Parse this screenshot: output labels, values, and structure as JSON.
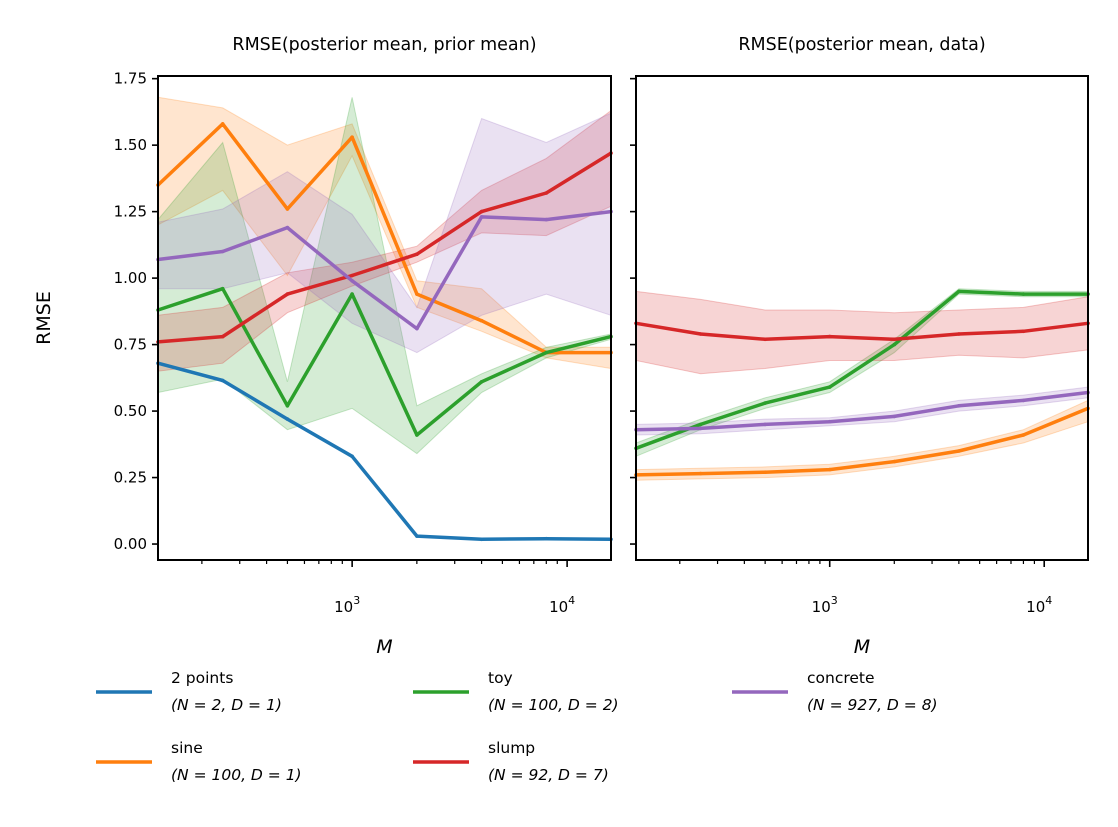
{
  "chart_data": [
    {
      "type": "line",
      "title": "RMSE(posterior mean, prior mean)",
      "xlabel": "M",
      "ylabel": "RMSE",
      "xscale": "log",
      "xlim": [
        125,
        16000
      ],
      "ylim": [
        -0.06,
        1.76
      ],
      "yticks": [
        "0.00",
        "0.25",
        "0.50",
        "0.75",
        "1.00",
        "1.25",
        "1.50",
        "1.75"
      ],
      "xticks": [
        {
          "base": "10",
          "exp": "3"
        },
        {
          "base": "10",
          "exp": "4"
        }
      ],
      "x": [
        125,
        250,
        500,
        1000,
        2000,
        4000,
        8000,
        16000
      ],
      "series": [
        {
          "name": "2 points",
          "color": "#1f77b4",
          "values": [
            0.68,
            0.615,
            0.47,
            0.33,
            0.03,
            0.018,
            0.02,
            0.018
          ],
          "lower": [
            0.68,
            0.615,
            0.47,
            0.33,
            0.03,
            0.018,
            0.02,
            0.018
          ],
          "upper": [
            0.68,
            0.615,
            0.47,
            0.33,
            0.03,
            0.018,
            0.02,
            0.018
          ]
        },
        {
          "name": "sine",
          "color": "#ff7f0e",
          "values": [
            1.35,
            1.58,
            1.26,
            1.53,
            0.94,
            0.84,
            0.72,
            0.72
          ],
          "lower": [
            1.2,
            1.33,
            1.01,
            1.46,
            0.89,
            0.8,
            0.7,
            0.66
          ],
          "upper": [
            1.68,
            1.64,
            1.5,
            1.58,
            0.99,
            0.96,
            0.74,
            0.74
          ]
        },
        {
          "name": "toy",
          "color": "#2ca02c",
          "values": [
            0.88,
            0.96,
            0.52,
            0.94,
            0.41,
            0.61,
            0.72,
            0.78
          ],
          "lower": [
            0.57,
            0.62,
            0.43,
            0.51,
            0.34,
            0.57,
            0.7,
            0.77
          ],
          "upper": [
            1.22,
            1.51,
            0.61,
            1.68,
            0.52,
            0.64,
            0.74,
            0.79
          ]
        },
        {
          "name": "slump",
          "color": "#d62728",
          "values": [
            0.76,
            0.78,
            0.94,
            1.01,
            1.09,
            1.25,
            1.32,
            1.47
          ],
          "lower": [
            0.65,
            0.68,
            0.87,
            0.97,
            1.06,
            1.17,
            1.16,
            1.27
          ],
          "upper": [
            0.86,
            0.89,
            1.02,
            1.06,
            1.12,
            1.33,
            1.45,
            1.63
          ]
        },
        {
          "name": "concrete",
          "color": "#9467bd",
          "values": [
            1.07,
            1.1,
            1.19,
            0.99,
            0.81,
            1.23,
            1.22,
            1.25
          ],
          "lower": [
            0.96,
            0.96,
            1.02,
            0.83,
            0.72,
            0.86,
            0.94,
            0.86
          ],
          "upper": [
            1.21,
            1.26,
            1.4,
            1.24,
            0.89,
            1.6,
            1.51,
            1.62
          ]
        }
      ]
    },
    {
      "type": "line",
      "title": "RMSE(posterior mean, data)",
      "xlabel": "M",
      "ylabel": "",
      "xscale": "log",
      "xlim": [
        125,
        16000
      ],
      "ylim": [
        -0.06,
        1.76
      ],
      "xticks": [
        {
          "base": "10",
          "exp": "3"
        },
        {
          "base": "10",
          "exp": "4"
        }
      ],
      "x": [
        125,
        250,
        500,
        1000,
        2000,
        4000,
        8000,
        16000
      ],
      "series": [
        {
          "name": "sine",
          "color": "#ff7f0e",
          "values": [
            0.26,
            0.265,
            0.27,
            0.28,
            0.31,
            0.35,
            0.41,
            0.51
          ],
          "lower": [
            0.24,
            0.245,
            0.25,
            0.26,
            0.29,
            0.33,
            0.38,
            0.46
          ],
          "upper": [
            0.28,
            0.285,
            0.29,
            0.3,
            0.33,
            0.37,
            0.43,
            0.54
          ]
        },
        {
          "name": "toy",
          "color": "#2ca02c",
          "values": [
            0.36,
            0.45,
            0.53,
            0.59,
            0.75,
            0.95,
            0.94,
            0.94
          ],
          "lower": [
            0.33,
            0.43,
            0.51,
            0.57,
            0.72,
            0.94,
            0.93,
            0.93
          ],
          "upper": [
            0.38,
            0.47,
            0.55,
            0.61,
            0.77,
            0.96,
            0.95,
            0.95
          ]
        },
        {
          "name": "slump",
          "color": "#d62728",
          "values": [
            0.83,
            0.79,
            0.77,
            0.78,
            0.77,
            0.79,
            0.8,
            0.83
          ],
          "lower": [
            0.69,
            0.64,
            0.66,
            0.69,
            0.69,
            0.71,
            0.7,
            0.73
          ],
          "upper": [
            0.95,
            0.92,
            0.88,
            0.88,
            0.87,
            0.88,
            0.89,
            0.93
          ]
        },
        {
          "name": "concrete",
          "color": "#9467bd",
          "values": [
            0.43,
            0.435,
            0.45,
            0.46,
            0.48,
            0.52,
            0.54,
            0.57
          ],
          "lower": [
            0.41,
            0.415,
            0.43,
            0.445,
            0.46,
            0.5,
            0.52,
            0.55
          ],
          "upper": [
            0.45,
            0.455,
            0.47,
            0.475,
            0.5,
            0.54,
            0.56,
            0.59
          ]
        }
      ]
    }
  ],
  "legend": {
    "placement": "bottom",
    "entries": [
      {
        "name": "2 points",
        "params": "(N = 2, D = 1)",
        "color": "#1f77b4"
      },
      {
        "name": "sine",
        "params": "(N = 100, D = 1)",
        "color": "#ff7f0e"
      },
      {
        "name": "toy",
        "params": "(N = 100, D = 2)",
        "color": "#2ca02c"
      },
      {
        "name": "slump",
        "params": "(N = 92, D = 7)",
        "color": "#d62728"
      },
      {
        "name": "concrete",
        "params": "(N = 927, D = 8)",
        "color": "#9467bd"
      }
    ]
  }
}
